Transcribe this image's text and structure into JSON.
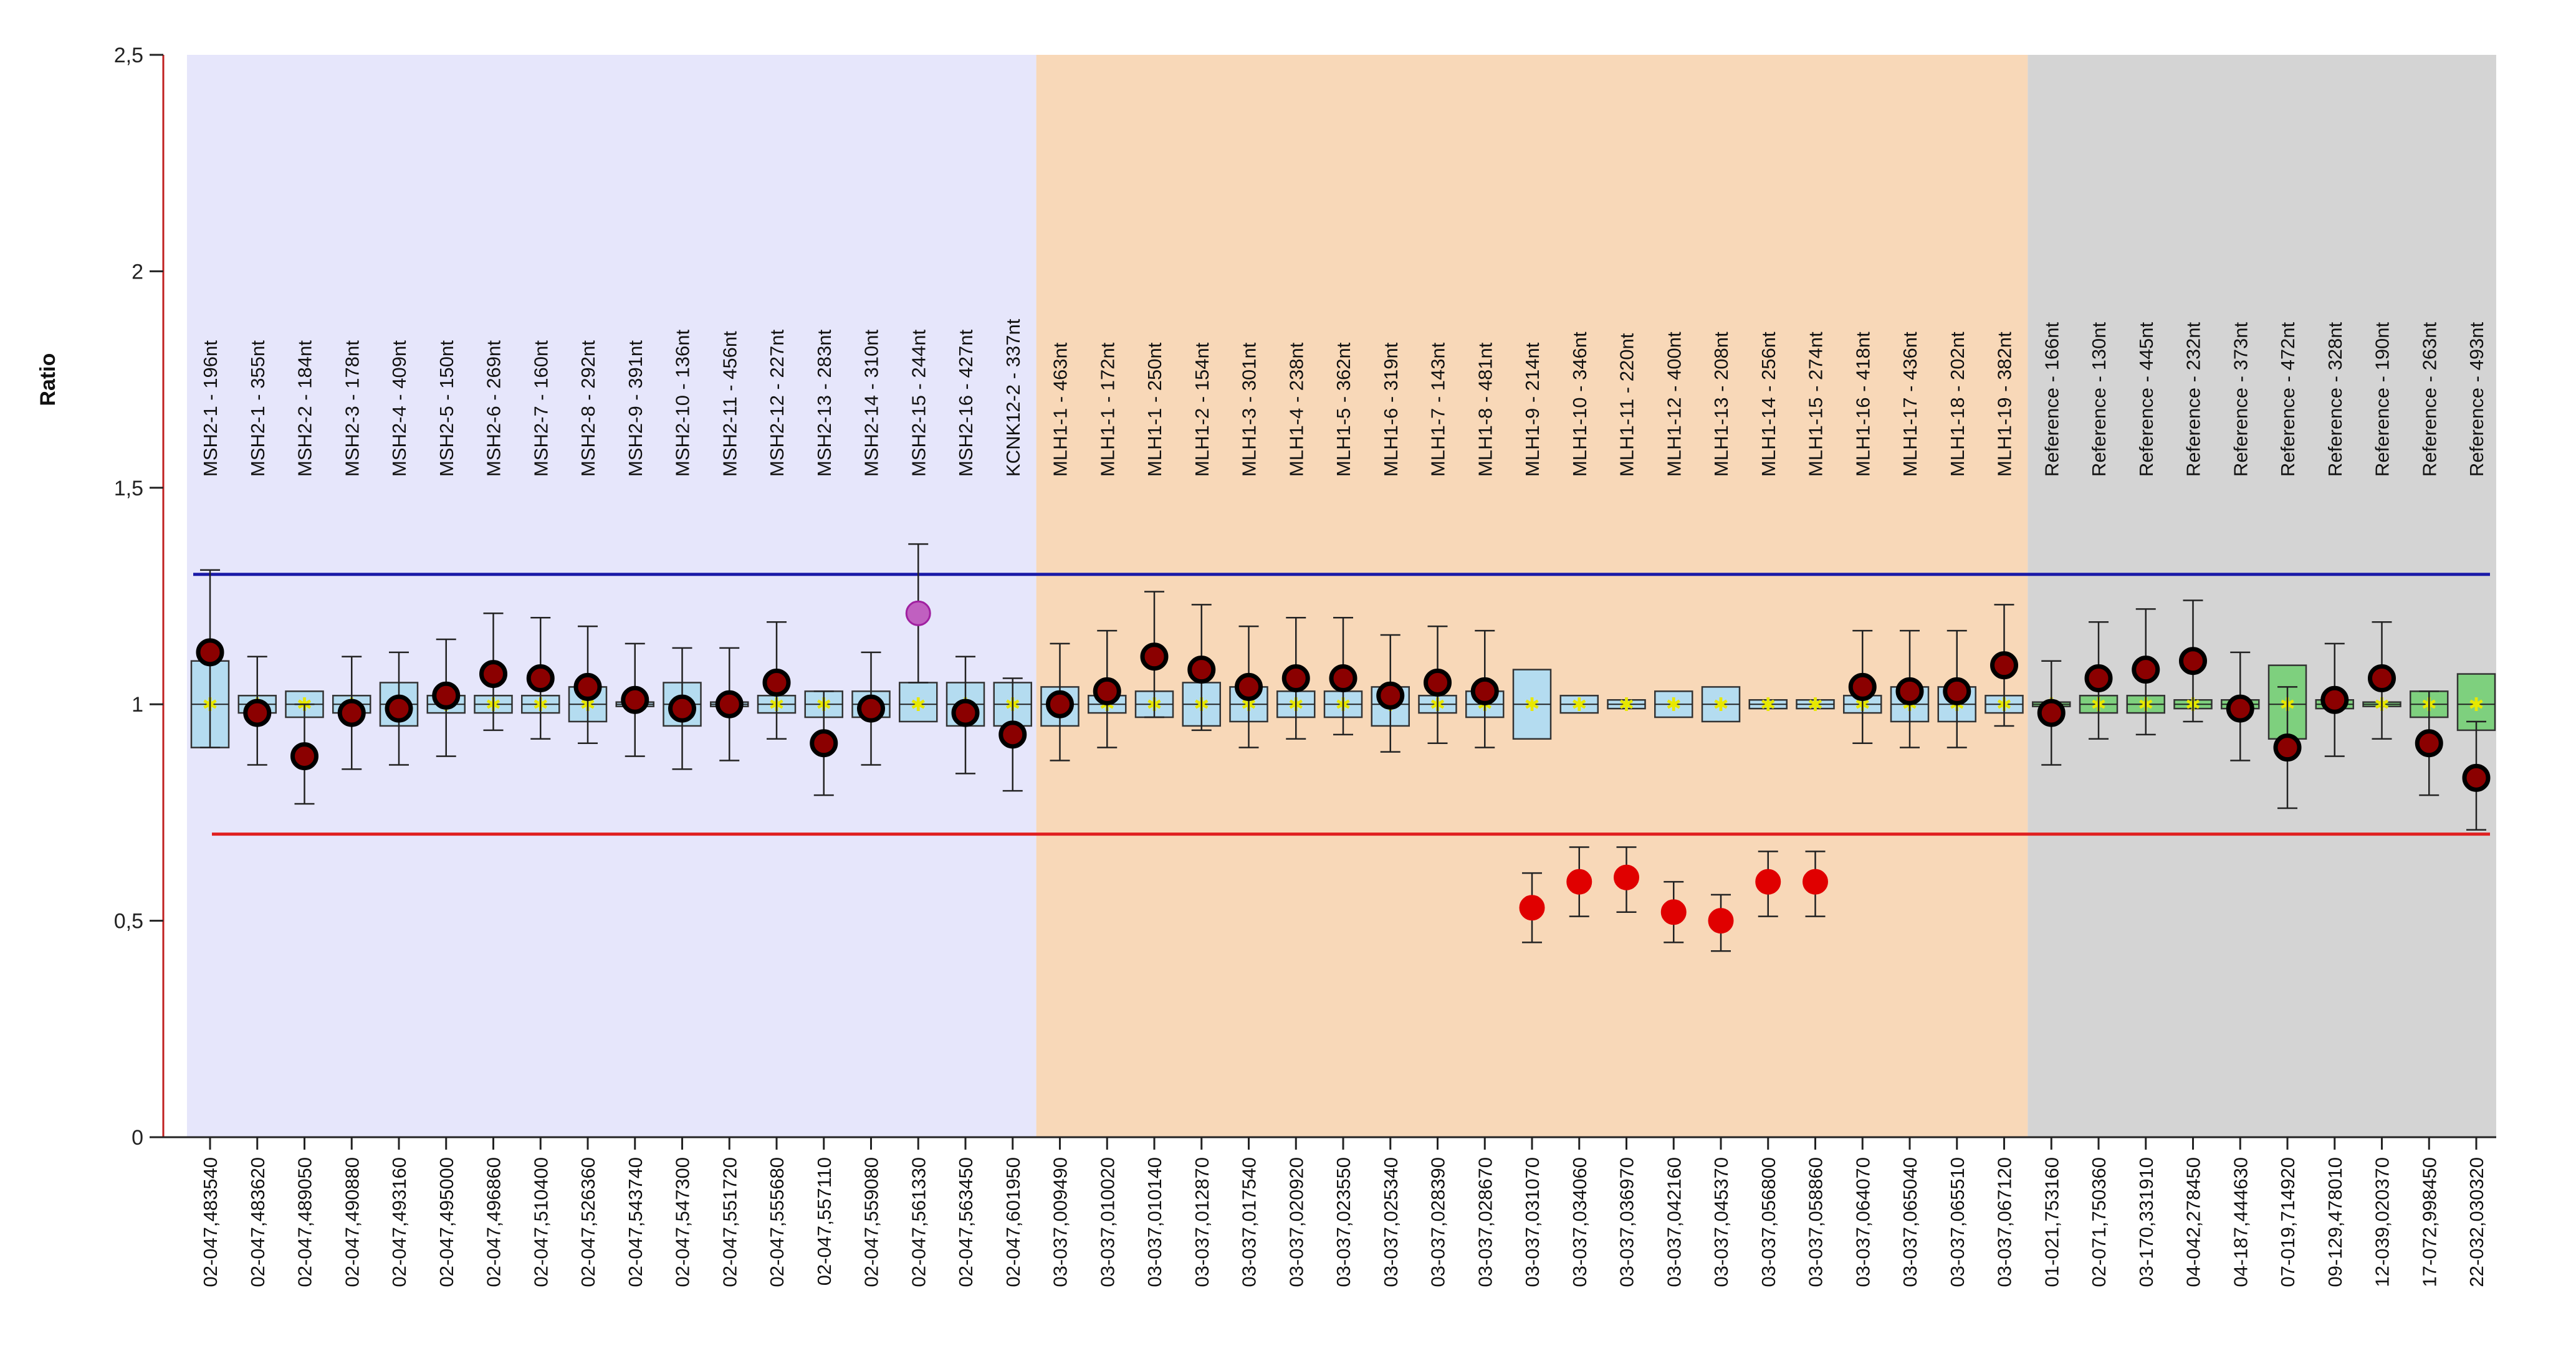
{
  "chart_data": {
    "type": "box",
    "ylabel": "Ratio",
    "ylim": [
      0,
      2.5
    ],
    "y_ticks": [
      "0",
      "0,5",
      "1",
      "1,5",
      "2",
      "2,5"
    ],
    "y_tick_values": [
      0,
      0.5,
      1,
      1.5,
      2,
      2.5
    ],
    "thresholds": {
      "upper": 1.3,
      "lower": 0.7,
      "upper_color": "#1a1aa8",
      "lower_color": "#e02020"
    },
    "groups": [
      {
        "name": "MSH2",
        "first": 0,
        "last": 17,
        "color": "#e6e6fb"
      },
      {
        "name": "MLH1",
        "first": 18,
        "last": 38,
        "color": "#f8d8b8"
      },
      {
        "name": "Reference",
        "first": 39,
        "last": 48,
        "color": "#d4d4d4"
      }
    ],
    "colors": {
      "box_blue": "#b4dcf0",
      "box_green": "#7ed07e",
      "dot_normal": "#8b0000",
      "dot_low": "#e00000",
      "dot_high": "#c060c0",
      "median": "#e8e800"
    },
    "probes": [
      {
        "label": "MSH2-1 - 196nt",
        "coord": "02-047,483540",
        "ratio": 1.12,
        "q1": 0.9,
        "q3": 1.1,
        "wmin": 0.9,
        "wmax": 1.31,
        "style": "blue",
        "status": "normal"
      },
      {
        "label": "MSH2-1 - 355nt",
        "coord": "02-047,483620",
        "ratio": 0.98,
        "q1": 0.98,
        "q3": 1.02,
        "wmin": 0.86,
        "wmax": 1.11,
        "style": "blue",
        "status": "normal"
      },
      {
        "label": "MSH2-2 - 184nt",
        "coord": "02-047,489050",
        "ratio": 0.88,
        "q1": 0.97,
        "q3": 1.03,
        "wmin": 0.77,
        "wmax": 1.0,
        "style": "blue",
        "status": "normal"
      },
      {
        "label": "MSH2-3 - 178nt",
        "coord": "02-047,490880",
        "ratio": 0.98,
        "q1": 0.98,
        "q3": 1.02,
        "wmin": 0.85,
        "wmax": 1.11,
        "style": "blue",
        "status": "normal"
      },
      {
        "label": "MSH2-4 - 409nt",
        "coord": "02-047,493160",
        "ratio": 0.99,
        "q1": 0.95,
        "q3": 1.05,
        "wmin": 0.86,
        "wmax": 1.12,
        "style": "blue",
        "status": "normal"
      },
      {
        "label": "MSH2-5 - 150nt",
        "coord": "02-047,495000",
        "ratio": 1.02,
        "q1": 0.98,
        "q3": 1.02,
        "wmin": 0.88,
        "wmax": 1.15,
        "style": "blue",
        "status": "normal"
      },
      {
        "label": "MSH2-6 - 269nt",
        "coord": "02-047,496860",
        "ratio": 1.07,
        "q1": 0.98,
        "q3": 1.02,
        "wmin": 0.94,
        "wmax": 1.21,
        "style": "blue",
        "status": "normal"
      },
      {
        "label": "MSH2-7 - 160nt",
        "coord": "02-047,510400",
        "ratio": 1.06,
        "q1": 0.98,
        "q3": 1.02,
        "wmin": 0.92,
        "wmax": 1.2,
        "style": "blue",
        "status": "normal"
      },
      {
        "label": "MSH2-8 - 292nt",
        "coord": "02-047,526360",
        "ratio": 1.04,
        "q1": 0.96,
        "q3": 1.04,
        "wmin": 0.91,
        "wmax": 1.18,
        "style": "blue",
        "status": "normal"
      },
      {
        "label": "MSH2-9 - 391nt",
        "coord": "02-047,543740",
        "ratio": 1.01,
        "q1": 0.995,
        "q3": 1.005,
        "wmin": 0.88,
        "wmax": 1.14,
        "style": "blue",
        "status": "normal"
      },
      {
        "label": "MSH2-10 - 136nt",
        "coord": "02-047,547300",
        "ratio": 0.99,
        "q1": 0.95,
        "q3": 1.05,
        "wmin": 0.85,
        "wmax": 1.13,
        "style": "blue",
        "status": "normal"
      },
      {
        "label": "MSH2-11 - 456nt",
        "coord": "02-047,551720",
        "ratio": 1.0,
        "q1": 0.995,
        "q3": 1.005,
        "wmin": 0.87,
        "wmax": 1.13,
        "style": "blue",
        "status": "normal"
      },
      {
        "label": "MSH2-12 - 227nt",
        "coord": "02-047,555680",
        "ratio": 1.05,
        "q1": 0.98,
        "q3": 1.02,
        "wmin": 0.92,
        "wmax": 1.19,
        "style": "blue",
        "status": "normal"
      },
      {
        "label": "MSH2-13 - 283nt",
        "coord": "02-047,557110",
        "ratio": 0.91,
        "q1": 0.97,
        "q3": 1.03,
        "wmin": 0.79,
        "wmax": 1.03,
        "style": "blue",
        "status": "normal"
      },
      {
        "label": "MSH2-14 - 310nt",
        "coord": "02-047,559080",
        "ratio": 0.99,
        "q1": 0.97,
        "q3": 1.03,
        "wmin": 0.86,
        "wmax": 1.12,
        "style": "blue",
        "status": "normal"
      },
      {
        "label": "MSH2-15 - 244nt",
        "coord": "02-047,561330",
        "ratio": 1.21,
        "q1": 0.96,
        "q3": 1.05,
        "wmin": 1.05,
        "wmax": 1.37,
        "style": "blue",
        "status": "high"
      },
      {
        "label": "MSH2-16 - 427nt",
        "coord": "02-047,563450",
        "ratio": 0.98,
        "q1": 0.95,
        "q3": 1.05,
        "wmin": 0.84,
        "wmax": 1.11,
        "style": "blue",
        "status": "normal"
      },
      {
        "label": "KCNK12-2 - 337nt",
        "coord": "02-047,601950",
        "ratio": 0.93,
        "q1": 0.95,
        "q3": 1.05,
        "wmin": 0.8,
        "wmax": 1.06,
        "style": "blue",
        "status": "normal"
      },
      {
        "label": "MLH1-1 - 463nt",
        "coord": "03-037,009490",
        "ratio": 1.0,
        "q1": 0.95,
        "q3": 1.04,
        "wmin": 0.87,
        "wmax": 1.14,
        "style": "blue",
        "status": "normal"
      },
      {
        "label": "MLH1-1 - 172nt",
        "coord": "03-037,010020",
        "ratio": 1.03,
        "q1": 0.98,
        "q3": 1.02,
        "wmin": 0.9,
        "wmax": 1.17,
        "style": "blue",
        "status": "normal"
      },
      {
        "label": "MLH1-1 - 250nt",
        "coord": "03-037,010140",
        "ratio": 1.11,
        "q1": 0.97,
        "q3": 1.03,
        "wmin": 0.97,
        "wmax": 1.26,
        "style": "blue",
        "status": "normal"
      },
      {
        "label": "MLH1-2 - 154nt",
        "coord": "03-037,012870",
        "ratio": 1.08,
        "q1": 0.95,
        "q3": 1.05,
        "wmin": 0.94,
        "wmax": 1.23,
        "style": "blue",
        "status": "normal"
      },
      {
        "label": "MLH1-3 - 301nt",
        "coord": "03-037,017540",
        "ratio": 1.04,
        "q1": 0.96,
        "q3": 1.04,
        "wmin": 0.9,
        "wmax": 1.18,
        "style": "blue",
        "status": "normal"
      },
      {
        "label": "MLH1-4 - 238nt",
        "coord": "03-037,020920",
        "ratio": 1.06,
        "q1": 0.97,
        "q3": 1.03,
        "wmin": 0.92,
        "wmax": 1.2,
        "style": "blue",
        "status": "normal"
      },
      {
        "label": "MLH1-5 - 362nt",
        "coord": "03-037,023550",
        "ratio": 1.06,
        "q1": 0.97,
        "q3": 1.03,
        "wmin": 0.93,
        "wmax": 1.2,
        "style": "blue",
        "status": "normal"
      },
      {
        "label": "MLH1-6 - 319nt",
        "coord": "03-037,025340",
        "ratio": 1.02,
        "q1": 0.95,
        "q3": 1.04,
        "wmin": 0.89,
        "wmax": 1.16,
        "style": "blue",
        "status": "normal"
      },
      {
        "label": "MLH1-7 - 143nt",
        "coord": "03-037,028390",
        "ratio": 1.05,
        "q1": 0.98,
        "q3": 1.02,
        "wmin": 0.91,
        "wmax": 1.18,
        "style": "blue",
        "status": "normal"
      },
      {
        "label": "MLH1-8 - 481nt",
        "coord": "03-037,028670",
        "ratio": 1.03,
        "q1": 0.97,
        "q3": 1.03,
        "wmin": 0.9,
        "wmax": 1.17,
        "style": "blue",
        "status": "normal"
      },
      {
        "label": "MLH1-9 - 214nt",
        "coord": "03-037,031070",
        "ratio": 0.53,
        "q1": 0.92,
        "q3": 1.08,
        "wmin": 0.45,
        "wmax": 0.61,
        "style": "blue",
        "status": "low"
      },
      {
        "label": "MLH1-10 - 346nt",
        "coord": "03-037,034060",
        "ratio": 0.59,
        "q1": 0.98,
        "q3": 1.02,
        "wmin": 0.51,
        "wmax": 0.67,
        "style": "blue",
        "status": "low"
      },
      {
        "label": "MLH1-11 - 220nt",
        "coord": "03-037,036970",
        "ratio": 0.6,
        "q1": 0.99,
        "q3": 1.01,
        "wmin": 0.52,
        "wmax": 0.67,
        "style": "blue",
        "status": "low"
      },
      {
        "label": "MLH1-12 - 400nt",
        "coord": "03-037,042160",
        "ratio": 0.52,
        "q1": 0.97,
        "q3": 1.03,
        "wmin": 0.45,
        "wmax": 0.59,
        "style": "blue",
        "status": "low"
      },
      {
        "label": "MLH1-13 - 208nt",
        "coord": "03-037,045370",
        "ratio": 0.5,
        "q1": 0.96,
        "q3": 1.04,
        "wmin": 0.43,
        "wmax": 0.56,
        "style": "blue",
        "status": "low"
      },
      {
        "label": "MLH1-14 - 256nt",
        "coord": "03-037,056800",
        "ratio": 0.59,
        "q1": 0.99,
        "q3": 1.01,
        "wmin": 0.51,
        "wmax": 0.66,
        "style": "blue",
        "status": "low"
      },
      {
        "label": "MLH1-15 - 274nt",
        "coord": "03-037,058860",
        "ratio": 0.59,
        "q1": 0.99,
        "q3": 1.01,
        "wmin": 0.51,
        "wmax": 0.66,
        "style": "blue",
        "status": "low"
      },
      {
        "label": "MLH1-16 - 418nt",
        "coord": "03-037,064070",
        "ratio": 1.04,
        "q1": 0.98,
        "q3": 1.02,
        "wmin": 0.91,
        "wmax": 1.17,
        "style": "blue",
        "status": "normal"
      },
      {
        "label": "MLH1-17 - 436nt",
        "coord": "03-037,065040",
        "ratio": 1.03,
        "q1": 0.96,
        "q3": 1.04,
        "wmin": 0.9,
        "wmax": 1.17,
        "style": "blue",
        "status": "normal"
      },
      {
        "label": "MLH1-18 - 202nt",
        "coord": "03-037,065510",
        "ratio": 1.03,
        "q1": 0.96,
        "q3": 1.04,
        "wmin": 0.9,
        "wmax": 1.17,
        "style": "blue",
        "status": "normal"
      },
      {
        "label": "MLH1-19 - 382nt",
        "coord": "03-037,067120",
        "ratio": 1.09,
        "q1": 0.98,
        "q3": 1.02,
        "wmin": 0.95,
        "wmax": 1.23,
        "style": "blue",
        "status": "normal"
      },
      {
        "label": "Reference - 166nt",
        "coord": "01-021,753160",
        "ratio": 0.98,
        "q1": 0.995,
        "q3": 1.005,
        "wmin": 0.86,
        "wmax": 1.1,
        "style": "green",
        "status": "normal"
      },
      {
        "label": "Reference - 130nt",
        "coord": "02-071,750360",
        "ratio": 1.06,
        "q1": 0.98,
        "q3": 1.02,
        "wmin": 0.92,
        "wmax": 1.19,
        "style": "green",
        "status": "normal"
      },
      {
        "label": "Reference - 445nt",
        "coord": "03-170,331910",
        "ratio": 1.08,
        "q1": 0.98,
        "q3": 1.02,
        "wmin": 0.93,
        "wmax": 1.22,
        "style": "green",
        "status": "normal"
      },
      {
        "label": "Reference - 232nt",
        "coord": "04-042,278450",
        "ratio": 1.1,
        "q1": 0.99,
        "q3": 1.01,
        "wmin": 0.96,
        "wmax": 1.24,
        "style": "green",
        "status": "normal"
      },
      {
        "label": "Reference - 373nt",
        "coord": "04-187,444630",
        "ratio": 0.99,
        "q1": 0.99,
        "q3": 1.01,
        "wmin": 0.87,
        "wmax": 1.12,
        "style": "green",
        "status": "normal"
      },
      {
        "label": "Reference - 472nt",
        "coord": "07-019,714920",
        "ratio": 0.9,
        "q1": 0.92,
        "q3": 1.09,
        "wmin": 0.76,
        "wmax": 1.04,
        "style": "green",
        "status": "normal"
      },
      {
        "label": "Reference - 328nt",
        "coord": "09-129,478010",
        "ratio": 1.01,
        "q1": 0.99,
        "q3": 1.01,
        "wmin": 0.88,
        "wmax": 1.14,
        "style": "green",
        "status": "normal"
      },
      {
        "label": "Reference - 190nt",
        "coord": "12-039,020370",
        "ratio": 1.06,
        "q1": 0.995,
        "q3": 1.005,
        "wmin": 0.92,
        "wmax": 1.19,
        "style": "green",
        "status": "normal"
      },
      {
        "label": "Reference - 263nt",
        "coord": "17-072,998450",
        "ratio": 0.91,
        "q1": 0.97,
        "q3": 1.03,
        "wmin": 0.79,
        "wmax": 1.03,
        "style": "green",
        "status": "normal"
      },
      {
        "label": "Reference - 493nt",
        "coord": "22-032,030320",
        "ratio": 0.83,
        "q1": 0.94,
        "q3": 1.07,
        "wmin": 0.71,
        "wmax": 0.96,
        "style": "green",
        "status": "normal"
      }
    ]
  }
}
